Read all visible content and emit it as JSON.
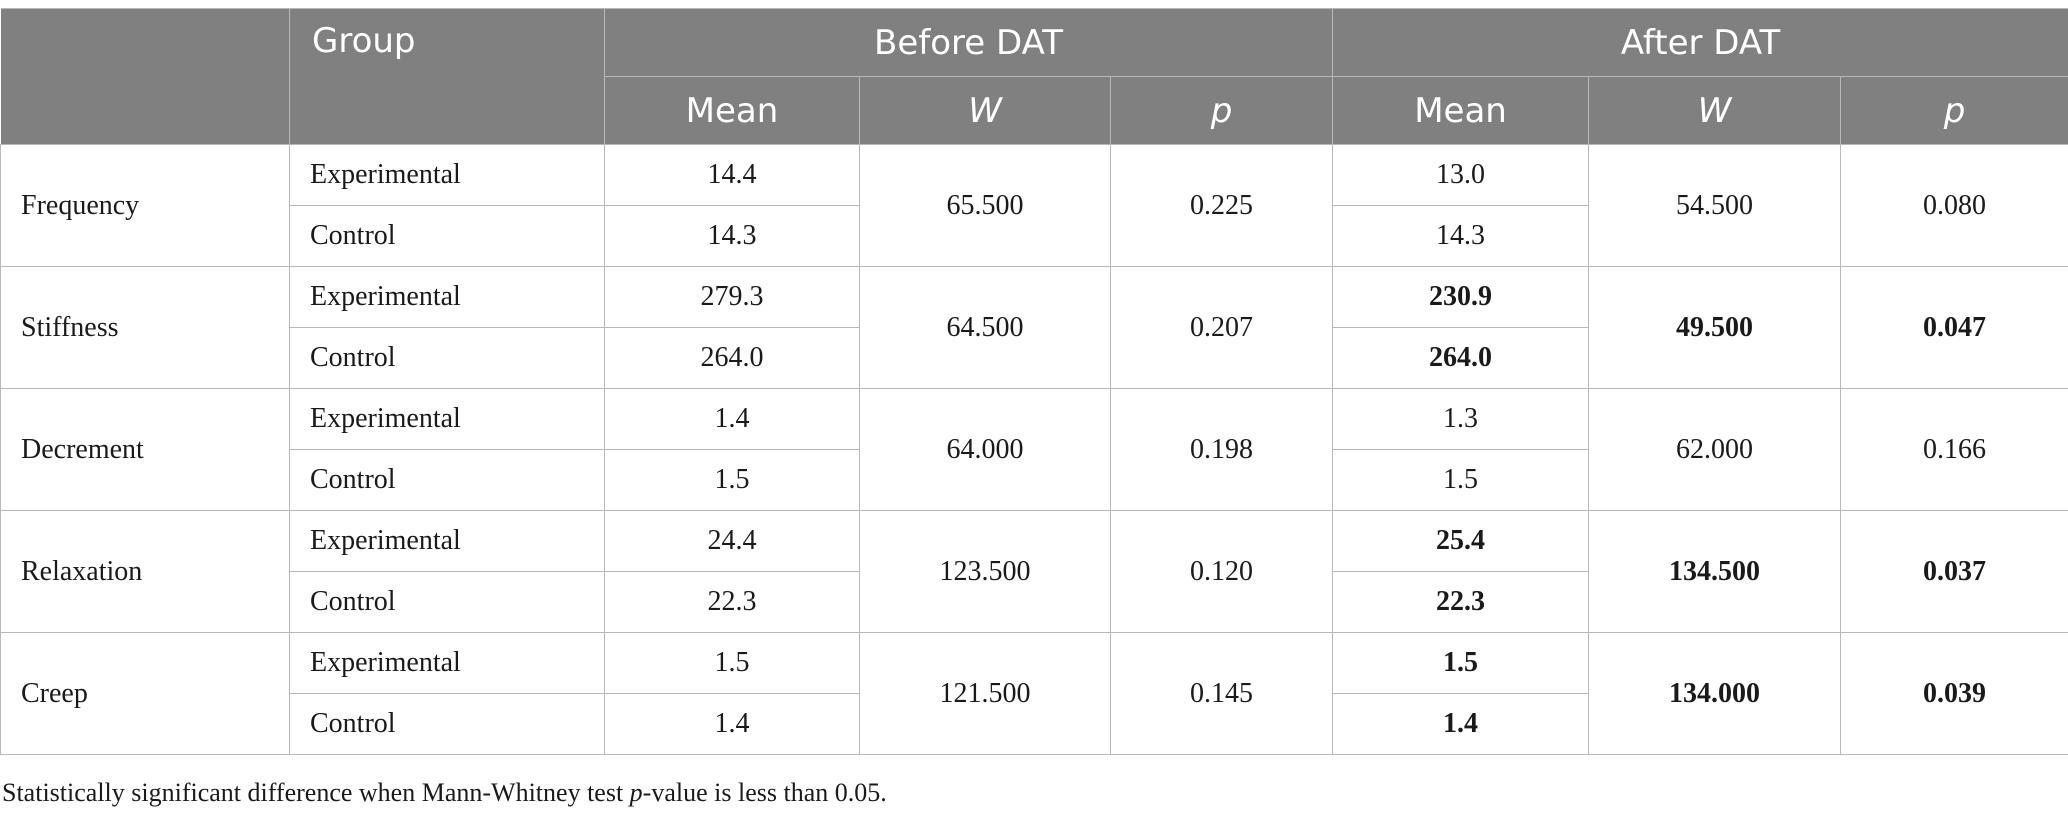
{
  "table": {
    "headers": {
      "group": "Group",
      "before": "Before DAT",
      "after": "After DAT",
      "mean": "Mean",
      "w": "W",
      "p": "p"
    },
    "rows": [
      {
        "measure": "Frequency",
        "groups": [
          "Experimental",
          "Control"
        ],
        "before_mean": [
          "14.4",
          "14.3"
        ],
        "before_w": "65.500",
        "before_p": "0.225",
        "after_mean": [
          "13.0",
          "14.3"
        ],
        "after_w": "54.500",
        "after_p": "0.080",
        "after_significant": false
      },
      {
        "measure": "Stiffness",
        "groups": [
          "Experimental",
          "Control"
        ],
        "before_mean": [
          "279.3",
          "264.0"
        ],
        "before_w": "64.500",
        "before_p": "0.207",
        "after_mean": [
          "230.9",
          "264.0"
        ],
        "after_w": "49.500",
        "after_p": "0.047",
        "after_significant": true
      },
      {
        "measure": "Decrement",
        "groups": [
          "Experimental",
          "Control"
        ],
        "before_mean": [
          "1.4",
          "1.5"
        ],
        "before_w": "64.000",
        "before_p": "0.198",
        "after_mean": [
          "1.3",
          "1.5"
        ],
        "after_w": "62.000",
        "after_p": "0.166",
        "after_significant": false
      },
      {
        "measure": "Relaxation",
        "groups": [
          "Experimental",
          "Control"
        ],
        "before_mean": [
          "24.4",
          "22.3"
        ],
        "before_w": "123.500",
        "before_p": "0.120",
        "after_mean": [
          "25.4",
          "22.3"
        ],
        "after_w": "134.500",
        "after_p": "0.037",
        "after_significant": true
      },
      {
        "measure": "Creep",
        "groups": [
          "Experimental",
          "Control"
        ],
        "before_mean": [
          "1.5",
          "1.4"
        ],
        "before_w": "121.500",
        "before_p": "0.145",
        "after_mean": [
          "1.5",
          "1.4"
        ],
        "after_w": "134.000",
        "after_p": "0.039",
        "after_significant": true
      }
    ]
  },
  "footnote": {
    "before": "Statistically significant difference when Mann-Whitney test ",
    "italic": "p",
    "after": "-value is less than 0.05."
  }
}
